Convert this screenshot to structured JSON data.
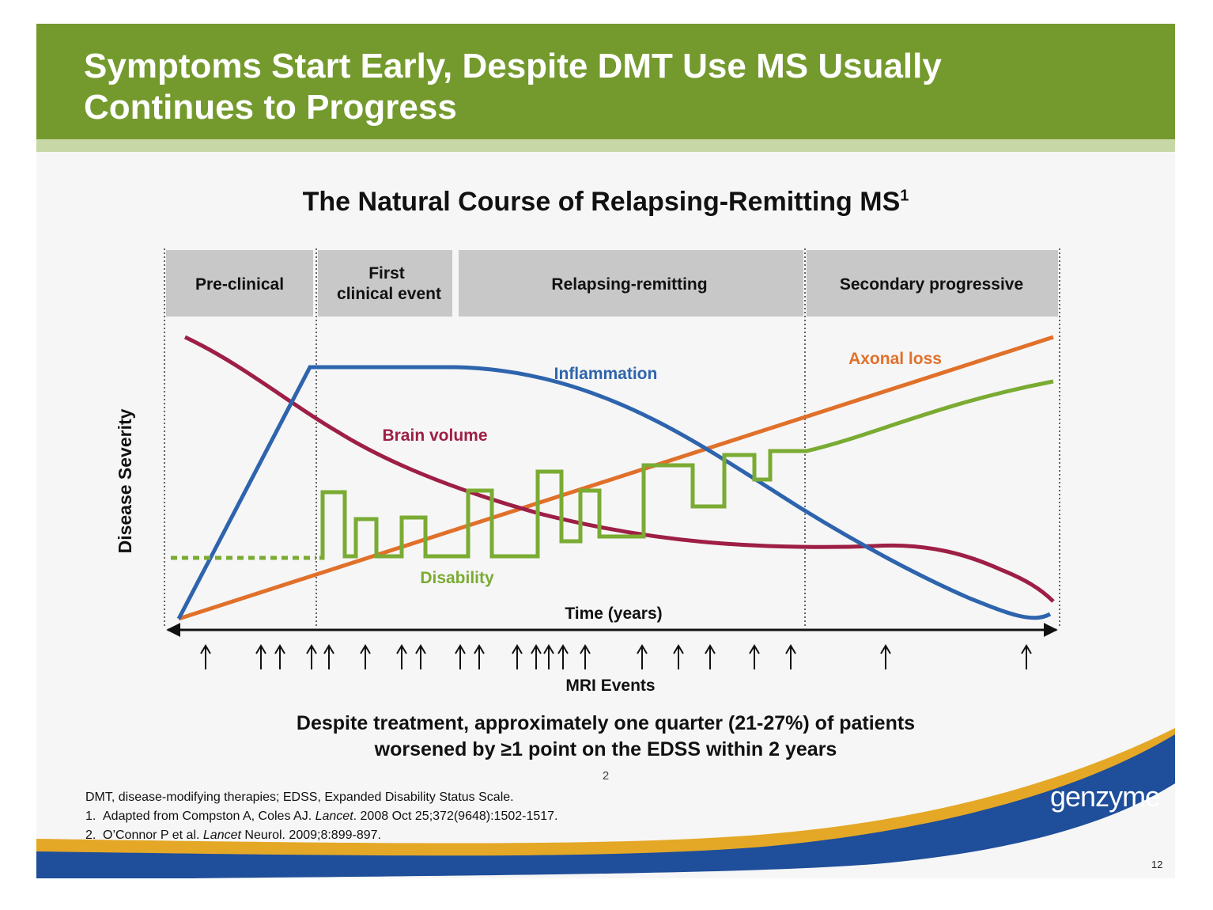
{
  "slide": {
    "title_line1": "Symptoms Start Early, Despite DMT Use MS Usually",
    "title_line2": "Continues to Progress",
    "chart_title": "The Natural Course of Relapsing-Remitting MS",
    "chart_title_ref": "1",
    "note_line1": "Despite treatment, approximately one quarter (21-27%) of patients",
    "note_line2": "worsened by ≥1 point on the EDSS within 2 years",
    "note_ref": "2",
    "footnotes": {
      "abbrev": "DMT, disease-modifying therapies; EDSS, Expanded Disability Status Scale.",
      "ref1_num": "1.",
      "ref1_pre": "Adapted from Compston A, Coles AJ.",
      "ref1_journal": "Lancet",
      "ref1_post": ". 2008 Oct 25;372(9648):1502-1517.",
      "ref2_num": "2.",
      "ref2_pre": "O’Connor P et al.",
      "ref2_journal": "Lancet",
      "ref2_post": "Neurol. 2009;8:899-897."
    },
    "logo": "genzyme",
    "page_number": "12",
    "colors": {
      "header": "#749a2e",
      "header_stripe": "#c7d7a5",
      "inflammation": "#2e64ad",
      "brain_volume": "#9e1f45",
      "axonal_loss": "#e0702a",
      "disability": "#7aab33",
      "phase_box": "#c8c8c8",
      "wave_blue": "#1f4e9a",
      "wave_gold": "#e4a826"
    }
  },
  "diagram": {
    "phases": [
      "Pre-clinical",
      "First clinical event",
      "Relapsing-remitting",
      "Secondary progressive"
    ],
    "phase_first_line1": "First",
    "phase_first_line2": "clinical event",
    "y_axis_label": "Disease Severity",
    "x_axis_label": "Time (years)",
    "events_label": "MRI Events",
    "curve_labels": {
      "inflammation": "Inflammation",
      "brain_volume": "Brain volume",
      "axonal_loss": "Axonal loss",
      "disability": "Disability"
    },
    "mri_event_arrow_count": 22
  }
}
